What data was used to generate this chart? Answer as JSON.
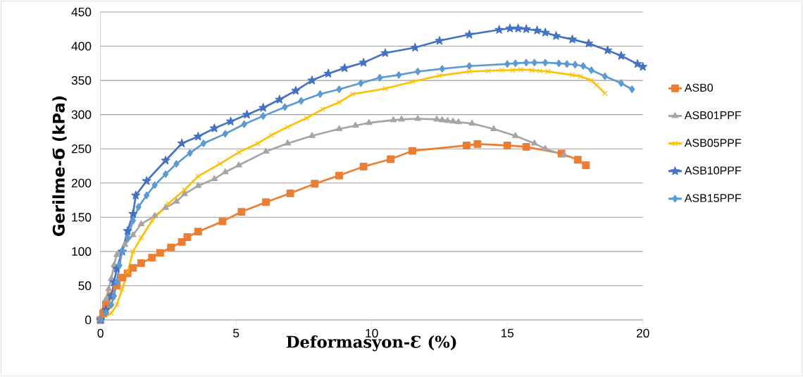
{
  "chart_data": {
    "type": "line",
    "xlabel": "Deformasyon-Ɛ (%)",
    "ylabel": "Gerilme-Ϭ (kPa)",
    "xlim": [
      0,
      20
    ],
    "xticks": [
      0,
      5,
      10,
      15,
      20
    ],
    "ylim": [
      0,
      450
    ],
    "yticks": [
      0,
      50,
      100,
      150,
      200,
      250,
      300,
      350,
      400,
      450
    ],
    "grid": "y",
    "legend": "right",
    "line_style": "solid",
    "series": [
      {
        "name": "ASB0",
        "color": "#ed7d31",
        "marker": "square",
        "x": [
          0,
          0.1,
          0.2,
          0.4,
          0.6,
          0.8,
          1,
          1.2,
          1.5,
          1.9,
          2.2,
          2.6,
          3,
          3.2,
          3.6,
          4.5,
          5.2,
          6.1,
          7,
          7.9,
          8.8,
          9.7,
          10.7,
          11.5,
          13.5,
          13.9,
          15,
          15.7,
          17,
          17.6,
          17.9
        ],
        "values": [
          0,
          10,
          23,
          35,
          50,
          62,
          68,
          76,
          83,
          91,
          98,
          106,
          114,
          121,
          129,
          144,
          158,
          172,
          185,
          199,
          211,
          224,
          235,
          247,
          255,
          257,
          255,
          253,
          243,
          234,
          226
        ]
      },
      {
        "name": "ASB01PPF",
        "color": "#a5a5a5",
        "marker": "triangle",
        "x": [
          0,
          0.2,
          0.3,
          0.4,
          0.5,
          0.6,
          0.9,
          1.2,
          1.5,
          2,
          2.4,
          2.8,
          3.1,
          3.6,
          4.2,
          4.6,
          5.1,
          6.1,
          6.9,
          7.8,
          8.8,
          9.4,
          9.9,
          10.8,
          11.1,
          11.7,
          12.4,
          12.6,
          12.8,
          13,
          13.2,
          13.7,
          14.5,
          15.3,
          16,
          16.4,
          17.1
        ],
        "values": [
          0,
          30,
          45,
          60,
          80,
          95,
          110,
          124,
          140,
          152,
          164,
          173,
          184,
          196,
          206,
          216,
          226,
          246,
          258,
          269,
          279,
          284,
          288,
          292,
          293,
          294,
          293,
          292,
          291,
          290,
          289,
          287,
          279,
          269,
          258,
          250,
          241
        ]
      },
      {
        "name": "ASB05PPF",
        "color": "#ffc000",
        "marker": "cross",
        "x": [
          0,
          0.4,
          0.6,
          0.8,
          1,
          1.2,
          1.5,
          1.9,
          2.5,
          3.1,
          3.6,
          4.4,
          5.1,
          5.8,
          6.3,
          6.9,
          7.6,
          8.2,
          8.8,
          9.3,
          10.5,
          11.5,
          12.5,
          13.6,
          14.3,
          14.8,
          15.2,
          15.5,
          15.9,
          16.2,
          16.5,
          17.4,
          17.7,
          18.1,
          18.3,
          18.6
        ],
        "values": [
          0,
          10,
          22,
          45,
          70,
          100,
          120,
          145,
          170,
          190,
          210,
          228,
          245,
          258,
          270,
          282,
          295,
          308,
          318,
          330,
          338,
          348,
          357,
          363,
          364,
          365,
          365,
          366,
          365,
          364,
          363,
          358,
          356,
          350,
          343,
          331
        ]
      },
      {
        "name": "ASB10PPF",
        "color": "#4472c4",
        "marker": "star",
        "x": [
          0,
          0.2,
          0.4,
          0.5,
          0.6,
          0.8,
          1,
          1.2,
          1.3,
          1.7,
          2.4,
          3,
          3.6,
          4.2,
          4.8,
          5.4,
          6,
          6.6,
          7.2,
          7.8,
          8.4,
          9,
          9.7,
          10.5,
          11.6,
          12.5,
          13.6,
          14.7,
          15.1,
          15.4,
          15.7,
          16.1,
          16.4,
          16.8,
          17.4,
          18,
          18.7,
          19.2,
          19.8,
          20
        ],
        "values": [
          0,
          15,
          35,
          55,
          75,
          100,
          130,
          155,
          182,
          203,
          233,
          258,
          268,
          280,
          290,
          300,
          310,
          322,
          335,
          350,
          360,
          368,
          376,
          390,
          398,
          408,
          417,
          424,
          426,
          426,
          425,
          423,
          420,
          415,
          410,
          404,
          394,
          386,
          374,
          370
        ]
      },
      {
        "name": "ASB15PPF",
        "color": "#5b9bd5",
        "marker": "diamond",
        "x": [
          0,
          0.2,
          0.4,
          0.5,
          0.6,
          0.7,
          0.8,
          1,
          1.2,
          1.4,
          1.7,
          2,
          2.4,
          2.8,
          3.3,
          3.8,
          4.6,
          5.3,
          6,
          6.8,
          7.4,
          8.1,
          8.8,
          9.6,
          10.3,
          11,
          11.7,
          12.6,
          13.6,
          15,
          15.3,
          15.7,
          16,
          16.4,
          16.9,
          17.2,
          17.5,
          17.8,
          18.1,
          18.6,
          19.2,
          19.6
        ],
        "values": [
          0,
          10,
          22,
          35,
          55,
          80,
          100,
          120,
          145,
          165,
          182,
          197,
          213,
          228,
          244,
          258,
          272,
          286,
          298,
          311,
          320,
          330,
          337,
          346,
          354,
          358,
          363,
          367,
          371,
          374,
          375,
          376,
          376,
          376,
          375,
          374,
          373,
          371,
          365,
          356,
          346,
          337
        ]
      }
    ]
  }
}
